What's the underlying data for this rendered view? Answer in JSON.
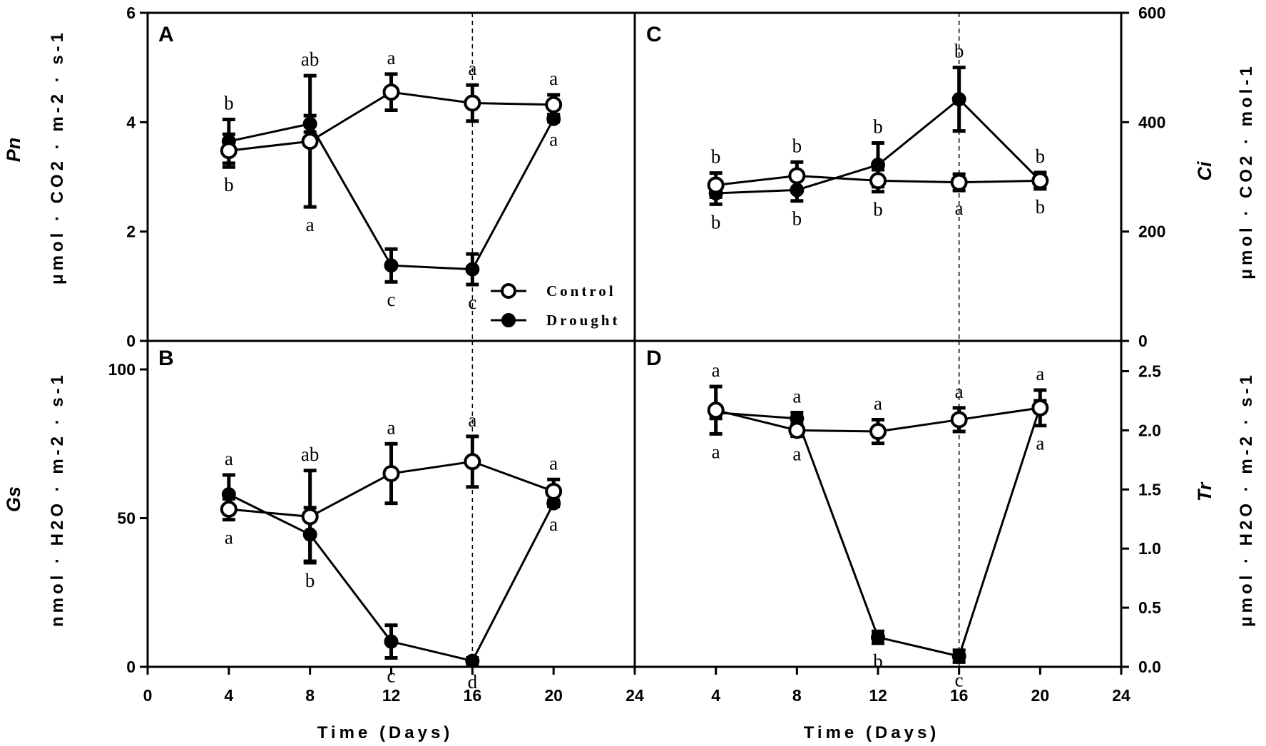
{
  "x_axis": {
    "title": "Time (Days)",
    "ticks": [
      "0",
      "4",
      "8",
      "12",
      "16",
      "20",
      "24",
      "4",
      "8",
      "12",
      "16",
      "20",
      "24"
    ]
  },
  "legend": {
    "control_label": "Control",
    "drought_label": "Drought"
  },
  "chart_data": [
    {
      "panel": "A",
      "type": "line",
      "ylabel_var": "Pn",
      "ylabel_unit": "μmol · CO2 · m-2 · s-1",
      "xlim": [
        0,
        24
      ],
      "ylim": [
        0,
        6
      ],
      "yticks": [
        "0",
        "2",
        "4",
        "6"
      ],
      "vline_x": 16,
      "series": [
        {
          "name": "Control",
          "x": [
            4,
            8,
            12,
            16,
            20
          ],
          "y": [
            3.48,
            3.65,
            4.55,
            4.35,
            4.32
          ],
          "err": [
            0.3,
            1.2,
            0.33,
            0.33,
            0.18
          ],
          "letters": [
            "b",
            "a",
            "a",
            "a",
            "a"
          ]
        },
        {
          "name": "Drought",
          "x": [
            4,
            8,
            12,
            16,
            20
          ],
          "y": [
            3.65,
            3.97,
            1.38,
            1.31,
            4.06
          ],
          "err": [
            0.4,
            0.15,
            0.3,
            0.28,
            0.05
          ],
          "letters": [
            "b",
            "ab",
            "c",
            "c",
            "a"
          ]
        }
      ]
    },
    {
      "panel": "B",
      "type": "line",
      "ylabel_var": "Gs",
      "ylabel_unit": "nmol · H2O · m-2 · s-1",
      "xlim": [
        0,
        24
      ],
      "ylim": [
        0,
        110
      ],
      "yticks": [
        "0",
        "50",
        "100"
      ],
      "vline_x": 16,
      "series": [
        {
          "name": "Control",
          "x": [
            4,
            8,
            12,
            16,
            20
          ],
          "y": [
            53,
            50.5,
            65,
            69,
            59
          ],
          "err": [
            3.5,
            15.5,
            10,
            8.5,
            4
          ],
          "letters": [
            "a",
            "ab",
            "a",
            "a",
            "a"
          ]
        },
        {
          "name": "Drought",
          "x": [
            4,
            8,
            12,
            16,
            20
          ],
          "y": [
            58,
            44.5,
            8.5,
            2,
            55
          ],
          "err": [
            6.5,
            9,
            5.5,
            1,
            1
          ],
          "letters": [
            "a",
            "b",
            "c",
            "d",
            "a"
          ]
        }
      ]
    },
    {
      "panel": "C",
      "type": "line",
      "ylabel_var": "Ci",
      "ylabel_unit": "μmol · CO2 · mol-1",
      "xlim": [
        0,
        24
      ],
      "ylim": [
        0,
        600
      ],
      "yticks": [
        "0",
        "200",
        "400",
        "600"
      ],
      "vline_x": 16,
      "series": [
        {
          "name": "Control",
          "x": [
            4,
            8,
            12,
            16,
            20
          ],
          "y": [
            285,
            302,
            293,
            290,
            293
          ],
          "err": [
            22,
            25,
            20,
            15,
            12
          ],
          "letters": [
            "b",
            "b",
            "b",
            "a",
            "b"
          ]
        },
        {
          "name": "Drought",
          "x": [
            4,
            8,
            12,
            16,
            20
          ],
          "y": [
            270,
            276,
            322,
            442,
            293
          ],
          "err": [
            20,
            20,
            40,
            58,
            15
          ],
          "letters": [
            "b",
            "b",
            "b",
            "b",
            "b"
          ]
        }
      ]
    },
    {
      "panel": "D",
      "type": "line",
      "ylabel_var": "Tr",
      "ylabel_unit": "μmol · H2O · m-2 · s-1",
      "xlim": [
        0,
        24
      ],
      "ylim": [
        0,
        2.75
      ],
      "yticks": [
        "0.0",
        "0.5",
        "1.0",
        "1.5",
        "2.0",
        "2.5"
      ],
      "vline_x": 16,
      "series": [
        {
          "name": "Control",
          "x": [
            4,
            8,
            12,
            16,
            20
          ],
          "y": [
            2.17,
            2.0,
            1.99,
            2.09,
            2.19
          ],
          "err": [
            0.2,
            0.05,
            0.1,
            0.1,
            0.15
          ],
          "letters": [
            "a",
            "a",
            "a",
            "a",
            "a"
          ]
        },
        {
          "name": "Drought",
          "x": [
            4,
            8,
            12,
            16,
            20
          ],
          "y": [
            2.15,
            2.1,
            0.25,
            0.09,
            2.2
          ],
          "err": [
            0.05,
            0.05,
            0.05,
            0.05,
            0.05
          ],
          "letters": [
            "a",
            "a",
            "b",
            "c",
            "a"
          ]
        }
      ]
    }
  ]
}
